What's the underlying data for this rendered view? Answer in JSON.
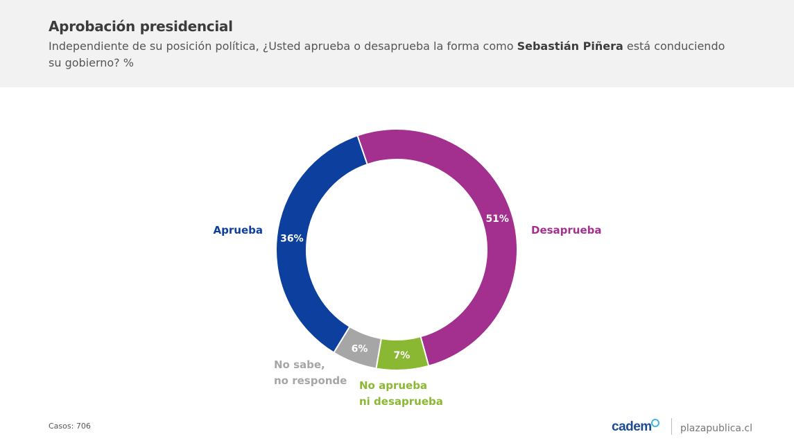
{
  "header": {
    "title": "Aprobación presidencial",
    "subtitle_part1": "Independiente de su posición política, ¿Usted aprueba o desaprueba la forma como ",
    "subtitle_bold": "Sebastián Piñera",
    "subtitle_part2": " está conduciendo su gobierno? %"
  },
  "chart_data": {
    "type": "pie",
    "variant": "donut",
    "slices": [
      {
        "label": "Desaprueba",
        "value": 51,
        "value_label": "51%",
        "color": "#a3308f",
        "label_lines": [
          "Desaprueba"
        ]
      },
      {
        "label": "No aprueba ni desaprueba",
        "value": 7,
        "value_label": "7%",
        "color": "#8ab832",
        "label_lines": [
          "No aprueba",
          "ni desaprueba"
        ]
      },
      {
        "label": "No sabe, no responde",
        "value": 6,
        "value_label": "6%",
        "color": "#a6a6a6",
        "label_lines": [
          "No sabe,",
          "no responde"
        ]
      },
      {
        "label": "Aprueba",
        "value": 36,
        "value_label": "36%",
        "color": "#0d3f9e",
        "label_lines": [
          "Aprueba"
        ]
      }
    ]
  },
  "footer": {
    "cases": "Casos: 706",
    "brand": "cadem",
    "site": "plazapublica.cl"
  },
  "colors": {
    "header_bg": "#f2f2f2",
    "title": "#3c3c3c",
    "brand": "#1c4a96",
    "brand_accent": "#3bb4e6"
  }
}
